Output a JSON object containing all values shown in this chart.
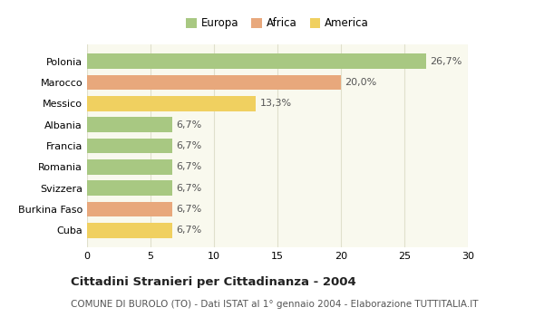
{
  "categories": [
    "Polonia",
    "Marocco",
    "Messico",
    "Albania",
    "Francia",
    "Romania",
    "Svizzera",
    "Burkina Faso",
    "Cuba"
  ],
  "values": [
    26.7,
    20.0,
    13.3,
    6.7,
    6.7,
    6.7,
    6.7,
    6.7,
    6.7
  ],
  "labels": [
    "26,7%",
    "20,0%",
    "13,3%",
    "6,7%",
    "6,7%",
    "6,7%",
    "6,7%",
    "6,7%",
    "6,7%"
  ],
  "colors": [
    "#a8c882",
    "#e8a87c",
    "#f0d060",
    "#a8c882",
    "#a8c882",
    "#a8c882",
    "#a8c882",
    "#e8a87c",
    "#f0d060"
  ],
  "legend_labels": [
    "Europa",
    "Africa",
    "America"
  ],
  "legend_colors": [
    "#a8c882",
    "#e8a87c",
    "#f0d060"
  ],
  "xlim": [
    0,
    30
  ],
  "xticks": [
    0,
    5,
    10,
    15,
    20,
    25,
    30
  ],
  "title": "Cittadini Stranieri per Cittadinanza - 2004",
  "subtitle": "COMUNE DI BUROLO (TO) - Dati ISTAT al 1° gennaio 2004 - Elaborazione TUTTITALIA.IT",
  "bg_color": "#ffffff",
  "plot_bg_color": "#f9f9ee",
  "grid_color": "#e0e0cc",
  "title_fontsize": 9.5,
  "subtitle_fontsize": 7.5,
  "label_fontsize": 8,
  "tick_fontsize": 8,
  "legend_fontsize": 8.5
}
